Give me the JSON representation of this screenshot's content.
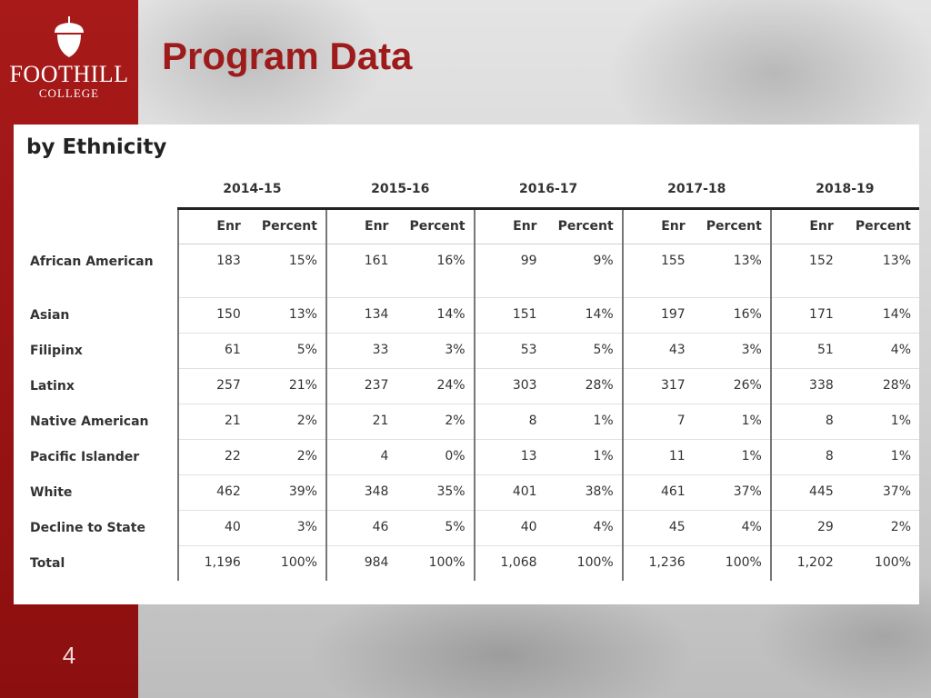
{
  "logo": {
    "name": "FOOTHILL",
    "sub": "COLLEGE"
  },
  "page_title": "Program Data",
  "page_number": "4",
  "subtitle": "by Ethnicity",
  "colors": {
    "sidebar": "#9b1414",
    "title": "#9e1b1b"
  },
  "table": {
    "years": [
      "2014-15",
      "2015-16",
      "2016-17",
      "2017-18",
      "2018-19"
    ],
    "subheaders": {
      "enr": "Enr",
      "percent": "Percent"
    },
    "rows": [
      {
        "label": "African American",
        "values": [
          "183",
          "15%",
          "161",
          "16%",
          "99",
          "9%",
          "155",
          "13%",
          "152",
          "13%"
        ]
      },
      {
        "label": "Asian",
        "values": [
          "150",
          "13%",
          "134",
          "14%",
          "151",
          "14%",
          "197",
          "16%",
          "171",
          "14%"
        ]
      },
      {
        "label": "Filipinx",
        "values": [
          "61",
          "5%",
          "33",
          "3%",
          "53",
          "5%",
          "43",
          "3%",
          "51",
          "4%"
        ]
      },
      {
        "label": "Latinx",
        "values": [
          "257",
          "21%",
          "237",
          "24%",
          "303",
          "28%",
          "317",
          "26%",
          "338",
          "28%"
        ]
      },
      {
        "label": "Native American",
        "values": [
          "21",
          "2%",
          "21",
          "2%",
          "8",
          "1%",
          "7",
          "1%",
          "8",
          "1%"
        ]
      },
      {
        "label": "Pacific Islander",
        "values": [
          "22",
          "2%",
          "4",
          "0%",
          "13",
          "1%",
          "11",
          "1%",
          "8",
          "1%"
        ]
      },
      {
        "label": "White",
        "values": [
          "462",
          "39%",
          "348",
          "35%",
          "401",
          "38%",
          "461",
          "37%",
          "445",
          "37%"
        ]
      },
      {
        "label": "Decline to State",
        "values": [
          "40",
          "3%",
          "46",
          "5%",
          "40",
          "4%",
          "45",
          "4%",
          "29",
          "2%"
        ]
      },
      {
        "label": "Total",
        "values": [
          "1,196",
          "100%",
          "984",
          "100%",
          "1,068",
          "100%",
          "1,236",
          "100%",
          "1,202",
          "100%"
        ]
      }
    ]
  }
}
